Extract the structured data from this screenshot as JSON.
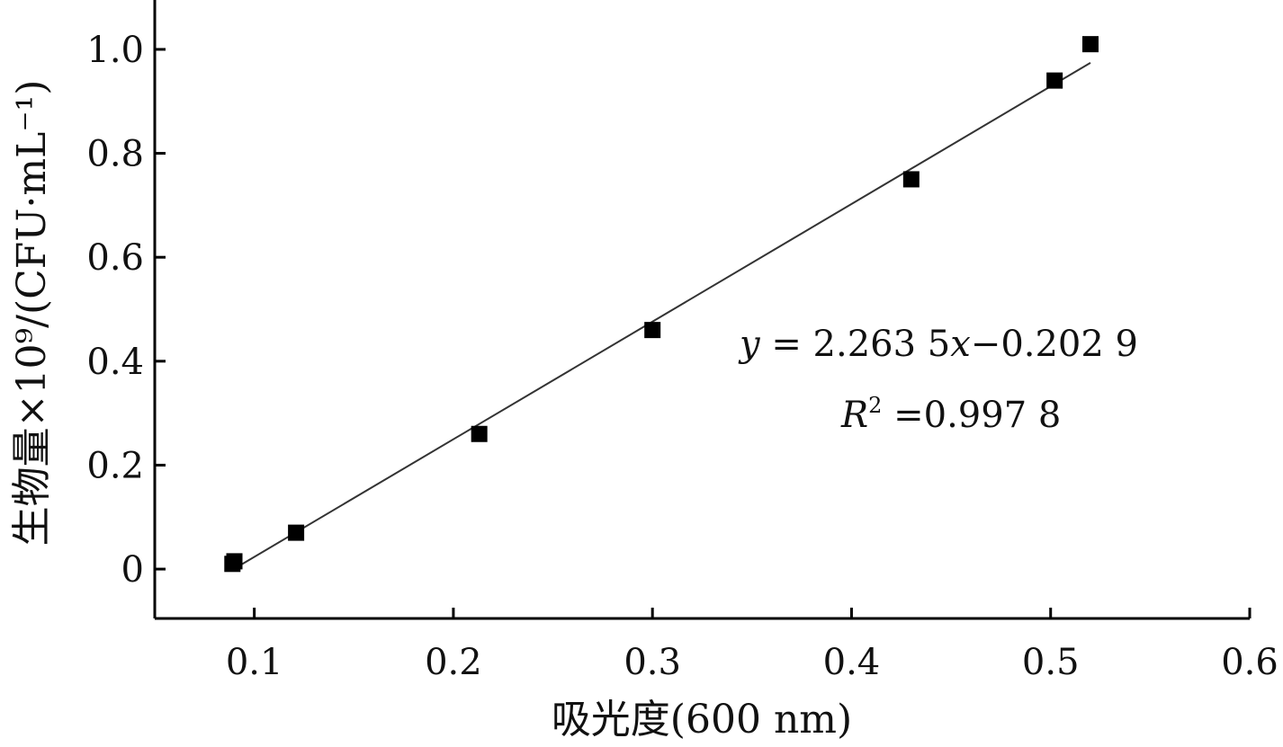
{
  "chart_data": {
    "type": "scatter",
    "xlabel": "吸光度(600 nm)",
    "ylabel": "生物量×10⁹/(CFU·mL⁻¹)",
    "xlim": [
      0.05,
      0.6
    ],
    "ylim": [
      -0.095,
      1.095
    ],
    "x_ticks": [
      "0.1",
      "0.2",
      "0.3",
      "0.4",
      "0.5",
      "0.6"
    ],
    "x_tick_values": [
      0.1,
      0.2,
      0.3,
      0.4,
      0.5,
      0.6
    ],
    "y_ticks": [
      "0",
      "0.2",
      "0.4",
      "0.6",
      "0.8",
      "1.0"
    ],
    "y_tick_values": [
      0,
      0.2,
      0.4,
      0.6,
      0.8,
      1.0
    ],
    "series": [
      {
        "x": [
          0.089,
          0.09,
          0.121,
          0.213,
          0.3,
          0.43,
          0.502,
          0.52
        ],
        "y": [
          0.01,
          0.015,
          0.07,
          0.26,
          0.46,
          0.75,
          0.94,
          1.01
        ],
        "color": "#000000"
      }
    ],
    "fit_line": {
      "slope": 2.2635,
      "intercept": -0.2029,
      "x_range": [
        0.09,
        0.52
      ],
      "color": "#333333"
    },
    "annotations": {
      "equation": {
        "y_var": "y",
        "eq_mid": " = 2.263 5",
        "x_var": "x",
        "eq_end": "−0.202 9"
      },
      "r2": {
        "r_var": "R",
        "sup": "2",
        "value": " =0.997 8"
      }
    },
    "grid": false,
    "legend": "none"
  }
}
